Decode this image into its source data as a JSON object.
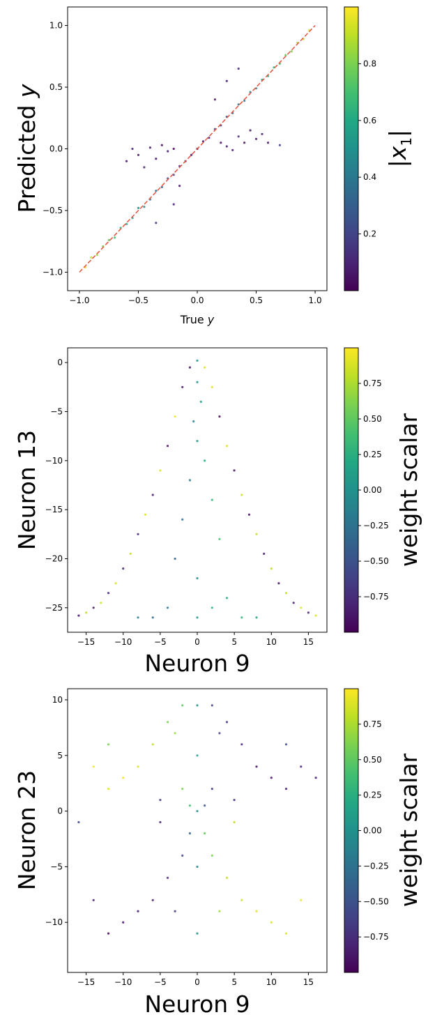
{
  "colors": {
    "viridis": [
      "#440154",
      "#482475",
      "#414487",
      "#355f8d",
      "#2a788e",
      "#21918c",
      "#22a884",
      "#44bf70",
      "#7ad151",
      "#bddf26",
      "#fde725"
    ],
    "reference_line": "#e8503c",
    "axes": "#000000"
  },
  "chart_data": [
    {
      "type": "scatter",
      "xlabel": "True y",
      "xlabel_parts": {
        "main": "True ",
        "math": "y"
      },
      "ylabel": "Predicted y",
      "ylabel_parts": {
        "main": "Predicted ",
        "math": "y"
      },
      "xlim": [
        -1.1,
        1.1
      ],
      "ylim": [
        -1.15,
        1.15
      ],
      "xticks": [
        -1.0,
        -0.5,
        0.0,
        0.5,
        1.0
      ],
      "yticks": [
        -1.0,
        -0.5,
        0.0,
        0.5,
        1.0
      ],
      "xtick_labels": [
        "−1.0",
        "−0.5",
        "0.0",
        "0.5",
        "1.0"
      ],
      "ytick_labels": [
        "−1.0",
        "−0.5",
        "0.0",
        "0.5",
        "1.0"
      ],
      "reference_line": {
        "x": [
          -1.0,
          1.0
        ],
        "y": [
          -1.0,
          1.0
        ],
        "style": "dashed"
      },
      "colorbar": {
        "label": "|x1|",
        "label_parts": {
          "left": "|",
          "math": "x",
          "sub": "1",
          "right": "|"
        },
        "range": [
          0.0,
          1.0
        ],
        "ticks": [
          0.2,
          0.4,
          0.6,
          0.8
        ],
        "tick_labels": [
          "0.2",
          "0.4",
          "0.6",
          "0.8"
        ]
      },
      "points": [
        [
          -0.95,
          -0.96,
          0.96
        ],
        [
          -0.9,
          -0.88,
          0.9
        ],
        [
          -0.85,
          -0.86,
          0.86
        ],
        [
          -0.8,
          -0.79,
          0.8
        ],
        [
          -0.75,
          -0.74,
          0.76
        ],
        [
          -0.7,
          -0.72,
          0.7
        ],
        [
          -0.65,
          -0.64,
          0.65
        ],
        [
          -0.6,
          -0.61,
          0.62
        ],
        [
          -0.55,
          -0.56,
          0.55
        ],
        [
          -0.5,
          -0.48,
          0.5
        ],
        [
          -0.45,
          -0.47,
          0.47
        ],
        [
          -0.4,
          -0.41,
          0.4
        ],
        [
          -0.35,
          -0.34,
          0.36
        ],
        [
          -0.3,
          -0.31,
          0.3
        ],
        [
          -0.25,
          -0.24,
          0.26
        ],
        [
          -0.2,
          -0.21,
          0.2
        ],
        [
          -0.15,
          -0.14,
          0.15
        ],
        [
          -0.1,
          -0.1,
          0.1
        ],
        [
          -0.05,
          -0.05,
          0.06
        ],
        [
          0.0,
          0.0,
          0.02
        ],
        [
          0.05,
          0.06,
          0.05
        ],
        [
          0.1,
          0.09,
          0.1
        ],
        [
          0.15,
          0.16,
          0.16
        ],
        [
          0.2,
          0.19,
          0.2
        ],
        [
          0.25,
          0.26,
          0.25
        ],
        [
          0.3,
          0.29,
          0.3
        ],
        [
          0.35,
          0.36,
          0.35
        ],
        [
          0.4,
          0.39,
          0.4
        ],
        [
          0.45,
          0.46,
          0.45
        ],
        [
          0.5,
          0.49,
          0.5
        ],
        [
          0.55,
          0.56,
          0.55
        ],
        [
          0.6,
          0.59,
          0.6
        ],
        [
          0.65,
          0.66,
          0.65
        ],
        [
          0.7,
          0.69,
          0.7
        ],
        [
          0.75,
          0.76,
          0.75
        ],
        [
          0.8,
          0.79,
          0.8
        ],
        [
          0.85,
          0.86,
          0.86
        ],
        [
          0.9,
          0.89,
          0.9
        ],
        [
          0.95,
          0.96,
          0.95
        ],
        [
          -0.6,
          -0.1,
          0.05
        ],
        [
          -0.55,
          0.0,
          0.08
        ],
        [
          -0.5,
          -0.05,
          0.04
        ],
        [
          -0.45,
          -0.15,
          0.1
        ],
        [
          -0.4,
          0.01,
          0.06
        ],
        [
          -0.35,
          -0.08,
          0.05
        ],
        [
          -0.3,
          0.03,
          0.03
        ],
        [
          -0.25,
          -0.02,
          0.07
        ],
        [
          -0.2,
          0.0,
          0.02
        ],
        [
          0.2,
          0.05,
          0.04
        ],
        [
          0.25,
          0.02,
          0.08
        ],
        [
          0.3,
          -0.01,
          0.05
        ],
        [
          0.35,
          0.1,
          0.1
        ],
        [
          0.4,
          0.05,
          0.03
        ],
        [
          0.45,
          0.15,
          0.06
        ],
        [
          0.5,
          0.08,
          0.04
        ],
        [
          0.55,
          0.12,
          0.07
        ],
        [
          0.6,
          0.05,
          0.05
        ],
        [
          0.7,
          0.03,
          0.2
        ],
        [
          -0.2,
          -0.45,
          0.1
        ],
        [
          -0.15,
          -0.3,
          0.05
        ],
        [
          0.15,
          0.4,
          0.06
        ],
        [
          0.25,
          0.55,
          0.08
        ],
        [
          -0.35,
          -0.6,
          0.15
        ],
        [
          0.35,
          0.65,
          0.12
        ]
      ]
    },
    {
      "type": "scatter",
      "xlabel": "Neuron 9",
      "ylabel": "Neuron 13",
      "xlim": [
        -17.5,
        17.5
      ],
      "ylim": [
        -27.5,
        1.5
      ],
      "xticks": [
        -15,
        -10,
        -5,
        0,
        5,
        10,
        15
      ],
      "yticks": [
        -25,
        -20,
        -15,
        -10,
        -5,
        0
      ],
      "xtick_labels": [
        "−15",
        "−10",
        "−5",
        "0",
        "5",
        "10",
        "15"
      ],
      "ytick_labels": [
        "−25",
        "−20",
        "−15",
        "−10",
        "−5",
        "0"
      ],
      "colorbar": {
        "label": "weight scalar",
        "range": [
          -1.0,
          1.0
        ],
        "ticks": [
          -0.75,
          -0.5,
          -0.25,
          0.0,
          0.25,
          0.5,
          0.75
        ],
        "tick_labels": [
          "−0.75",
          "−0.50",
          "−0.25",
          "0.00",
          "0.25",
          "0.50",
          "0.75"
        ]
      },
      "points": [
        [
          0,
          0.2,
          0.0
        ],
        [
          -1,
          -0.5,
          -0.9
        ],
        [
          1,
          -0.5,
          0.9
        ],
        [
          -2,
          -2.5,
          -0.9
        ],
        [
          2,
          -2.5,
          0.9
        ],
        [
          -3,
          -5.5,
          0.95
        ],
        [
          3,
          -5.5,
          -0.95
        ],
        [
          -4,
          -8.5,
          -0.9
        ],
        [
          4,
          -8.5,
          0.9
        ],
        [
          -5,
          -11,
          0.9
        ],
        [
          5,
          -11,
          -0.9
        ],
        [
          -6,
          -13.5,
          -0.85
        ],
        [
          6,
          -13.5,
          0.85
        ],
        [
          -7,
          -15.5,
          0.9
        ],
        [
          7,
          -15.5,
          -0.9
        ],
        [
          -8,
          -17.5,
          -0.8
        ],
        [
          8,
          -17.5,
          0.8
        ],
        [
          -9,
          -19.5,
          0.85
        ],
        [
          9,
          -19.5,
          -0.85
        ],
        [
          -10,
          -21,
          -0.8
        ],
        [
          10,
          -21,
          0.8
        ],
        [
          -11,
          -22.5,
          0.9
        ],
        [
          11,
          -22.5,
          -0.9
        ],
        [
          -12,
          -23.5,
          -0.8
        ],
        [
          12,
          -23.5,
          0.8
        ],
        [
          -13,
          -24.5,
          0.85
        ],
        [
          13,
          -24.5,
          -0.85
        ],
        [
          -14,
          -25,
          -0.9
        ],
        [
          14,
          -25,
          0.9
        ],
        [
          -15,
          -25.5,
          0.8
        ],
        [
          15,
          -25.5,
          -0.8
        ],
        [
          -16,
          -25.8,
          -0.9
        ],
        [
          16,
          -25.8,
          0.9
        ],
        [
          0,
          -2,
          0.0
        ],
        [
          0.5,
          -4,
          0.1
        ],
        [
          -0.5,
          -6,
          -0.1
        ],
        [
          0,
          -8,
          0.05
        ],
        [
          1,
          -10,
          0.2
        ],
        [
          -1,
          -12,
          -0.2
        ],
        [
          2,
          -14,
          0.3
        ],
        [
          -2,
          -16,
          -0.3
        ],
        [
          3,
          -18,
          0.4
        ],
        [
          -3,
          -20,
          -0.4
        ],
        [
          0,
          -22,
          0.0
        ],
        [
          4,
          -24,
          0.2
        ],
        [
          -4,
          -25,
          -0.2
        ],
        [
          0,
          -26,
          0.05
        ],
        [
          6,
          -26,
          0.3
        ],
        [
          -6,
          -26,
          -0.3
        ],
        [
          8,
          -26,
          0.15
        ],
        [
          -8,
          -26,
          -0.15
        ],
        [
          2,
          -25,
          0.25
        ]
      ]
    },
    {
      "type": "scatter",
      "xlabel": "Neuron 9",
      "ylabel": "Neuron 23",
      "xlim": [
        -17.5,
        17.5
      ],
      "ylim": [
        -14.5,
        11.0
      ],
      "xticks": [
        -15,
        -10,
        -5,
        0,
        5,
        10,
        15
      ],
      "yticks": [
        -10,
        -5,
        0,
        5,
        10
      ],
      "xtick_labels": [
        "−15",
        "−10",
        "−5",
        "0",
        "5",
        "10",
        "15"
      ],
      "ytick_labels": [
        "−10",
        "−5",
        "0",
        "5",
        "10"
      ],
      "colorbar": {
        "label": "weight scalar",
        "range": [
          -1.0,
          1.0
        ],
        "ticks": [
          -0.75,
          -0.5,
          -0.25,
          0.0,
          0.25,
          0.5,
          0.75
        ],
        "tick_labels": [
          "−0.75",
          "−0.50",
          "−0.25",
          "0.00",
          "0.25",
          "0.50",
          "0.75"
        ]
      },
      "points": [
        [
          0,
          9.5,
          0.0
        ],
        [
          -2,
          9.5,
          0.5
        ],
        [
          2,
          9.5,
          -0.6
        ],
        [
          -4,
          8,
          0.6
        ],
        [
          4,
          8,
          -0.7
        ],
        [
          -6,
          6,
          0.8
        ],
        [
          6,
          6,
          -0.8
        ],
        [
          -8,
          4,
          0.9
        ],
        [
          8,
          4,
          -0.9
        ],
        [
          -10,
          3,
          0.95
        ],
        [
          10,
          3,
          -0.9
        ],
        [
          -12,
          2,
          0.9
        ],
        [
          12,
          2,
          -0.85
        ],
        [
          -14,
          4,
          0.95
        ],
        [
          14,
          4,
          -0.8
        ],
        [
          -2,
          2,
          0.6
        ],
        [
          2,
          2,
          -0.7
        ],
        [
          -1,
          0.5,
          0.4
        ],
        [
          1,
          0.5,
          -0.5
        ],
        [
          0,
          0,
          0.0
        ],
        [
          -1,
          -2,
          -0.4
        ],
        [
          1,
          -2,
          0.5
        ],
        [
          -2,
          -4,
          -0.6
        ],
        [
          2,
          -4,
          0.6
        ],
        [
          -4,
          -6,
          -0.8
        ],
        [
          4,
          -6,
          0.8
        ],
        [
          -6,
          -8,
          -0.85
        ],
        [
          6,
          -8,
          0.85
        ],
        [
          -8,
          -9,
          -0.9
        ],
        [
          8,
          -9,
          0.9
        ],
        [
          -10,
          -10,
          -0.9
        ],
        [
          10,
          -10,
          0.9
        ],
        [
          -12,
          -11,
          -0.95
        ],
        [
          12,
          -11,
          0.9
        ],
        [
          -14,
          -8,
          -0.85
        ],
        [
          14,
          -8,
          0.95
        ],
        [
          0,
          -11,
          0.0
        ],
        [
          0,
          5,
          0.1
        ],
        [
          0,
          -5,
          -0.1
        ],
        [
          -3,
          7,
          0.7
        ],
        [
          3,
          7,
          -0.65
        ],
        [
          -3,
          -9,
          -0.7
        ],
        [
          3,
          -9,
          0.7
        ],
        [
          -5,
          1,
          -0.7
        ],
        [
          5,
          1,
          -0.75
        ],
        [
          -5,
          -1,
          -0.8
        ],
        [
          5,
          -1,
          0.8
        ],
        [
          -16,
          -1,
          -0.6
        ],
        [
          16,
          3,
          -0.85
        ],
        [
          -12,
          6,
          0.6
        ],
        [
          12,
          6,
          -0.6
        ]
      ]
    }
  ]
}
